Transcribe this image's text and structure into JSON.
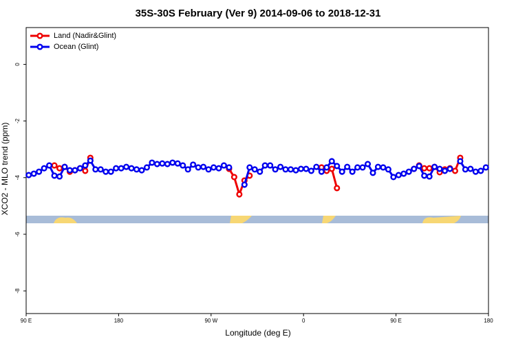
{
  "chart_data": {
    "type": "line",
    "title": "35S-30S February (Ver 9)   2014-09-06 to 2018-12-31",
    "x_label": "Longitude (deg E)",
    "y_label": "XCO2 - MLO trend (ppm)",
    "x": [
      92.5,
      97.5,
      102.5,
      107.5,
      112.5,
      117.5,
      122.5,
      127.5,
      132.5,
      137.5,
      142.5,
      147.5,
      152.5,
      157.5,
      162.5,
      167.5,
      172.5,
      177.5,
      182.5,
      187.5,
      192.5,
      197.5,
      202.5,
      207.5,
      212.5,
      217.5,
      222.5,
      227.5,
      232.5,
      237.5,
      242.5,
      247.5,
      252.5,
      257.5,
      262.5,
      267.5,
      272.5,
      277.5,
      282.5,
      287.5,
      292.5,
      297.5,
      302.5,
      307.5,
      312.5,
      317.5,
      322.5,
      327.5,
      332.5,
      337.5,
      342.5,
      347.5,
      352.5,
      357.5,
      362.5,
      367.5,
      372.5,
      377.5,
      382.5,
      387.5,
      392.5,
      397.5,
      402.5,
      407.5,
      412.5,
      417.5,
      422.5,
      427.5,
      432.5,
      437.5,
      442.5,
      447.5,
      452.5,
      457.5,
      462.5,
      467.5,
      472.5,
      477.5,
      482.5,
      487.5,
      492.5,
      497.5,
      502.5,
      507.5,
      512.5,
      517.5,
      522.5,
      527.5,
      532.5,
      537.5
    ],
    "series": [
      {
        "name": "Land (Nadir&Glint)",
        "color": "#ee0000",
        "values": [
          null,
          null,
          null,
          null,
          null,
          -3.57,
          -3.67,
          -3.62,
          -3.79,
          -3.74,
          -3.67,
          -3.76,
          -3.3,
          null,
          null,
          null,
          null,
          null,
          null,
          null,
          null,
          null,
          null,
          null,
          null,
          null,
          null,
          null,
          null,
          null,
          null,
          null,
          null,
          null,
          null,
          null,
          null,
          null,
          null,
          -3.69,
          -3.98,
          -4.59,
          -4.1,
          -3.93,
          null,
          null,
          null,
          null,
          null,
          null,
          null,
          null,
          null,
          null,
          null,
          null,
          null,
          -3.64,
          -3.76,
          -3.69,
          -4.37,
          null,
          null,
          null,
          null,
          null,
          null,
          null,
          null,
          null,
          null,
          null,
          null,
          null,
          null,
          -3.69,
          -3.57,
          -3.67,
          -3.67,
          -3.62,
          -3.81,
          -3.71,
          -3.67,
          -3.76,
          -3.3,
          null,
          null,
          null,
          null,
          null
        ]
      },
      {
        "name": "Ocean (Glint)",
        "color": "#0000ee",
        "values": [
          -3.91,
          -3.86,
          -3.79,
          -3.67,
          -3.57,
          -3.93,
          -3.96,
          -3.62,
          -3.74,
          -3.74,
          -3.67,
          -3.57,
          -3.4,
          -3.71,
          -3.71,
          -3.79,
          -3.79,
          -3.67,
          -3.67,
          -3.62,
          -3.67,
          -3.71,
          -3.74,
          -3.64,
          -3.47,
          -3.52,
          -3.5,
          -3.52,
          -3.47,
          -3.5,
          -3.57,
          -3.71,
          -3.54,
          -3.64,
          -3.62,
          -3.71,
          -3.64,
          -3.67,
          -3.57,
          -3.64,
          null,
          null,
          -4.25,
          -3.64,
          -3.71,
          -3.79,
          -3.57,
          -3.57,
          -3.71,
          -3.62,
          -3.71,
          -3.71,
          -3.74,
          -3.69,
          -3.69,
          -3.76,
          -3.62,
          -3.79,
          -3.64,
          -3.42,
          -3.59,
          -3.79,
          -3.62,
          -3.79,
          -3.64,
          -3.64,
          -3.52,
          -3.83,
          -3.62,
          -3.64,
          -3.71,
          -3.98,
          -3.91,
          -3.86,
          -3.79,
          -3.69,
          -3.59,
          -3.93,
          -3.96,
          -3.62,
          -3.69,
          -3.76,
          -3.69,
          null,
          -3.42,
          -3.71,
          -3.69,
          -3.79,
          -3.76,
          -3.64
        ]
      }
    ],
    "xlim": [
      90,
      540
    ],
    "xticks": [
      {
        "value": 90,
        "label": "90 E"
      },
      {
        "value": 180,
        "label": "180"
      },
      {
        "value": 270,
        "label": "90 W"
      },
      {
        "value": 360,
        "label": "0"
      },
      {
        "value": 450,
        "label": "90 E"
      },
      {
        "value": 540,
        "label": "180"
      }
    ],
    "ylim": [
      -8.8,
      1.3
    ],
    "yticks": [
      0,
      -2,
      -4,
      -6,
      -8
    ],
    "legend": "top-left"
  }
}
